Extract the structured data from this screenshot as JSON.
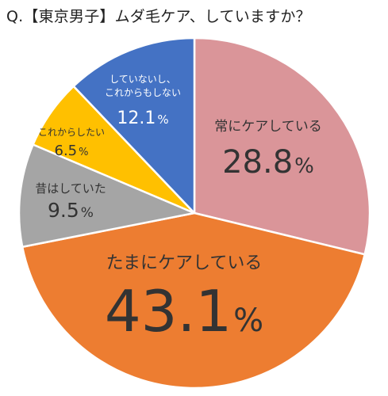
{
  "title": "Q.【東京男子】ムダ毛ケア、していますか？",
  "chart_data": {
    "type": "pie",
    "title": "Q.【東京男子】ムダ毛ケア、していますか？",
    "start_angle_deg": 0,
    "direction": "clockwise",
    "slices": [
      {
        "label_lines": [
          "常にケアしている"
        ],
        "value": 28.8,
        "value_text": "28.8",
        "unit": "%",
        "color": "#DA9599"
      },
      {
        "label_lines": [
          "たまにケアしている"
        ],
        "value": 43.1,
        "value_text": "43.1",
        "unit": "%",
        "color": "#ED7D31"
      },
      {
        "label_lines": [
          "昔はしていた"
        ],
        "value": 9.5,
        "value_text": "9.5",
        "unit": "%",
        "color": "#A5A5A5"
      },
      {
        "label_lines": [
          "これからしたい"
        ],
        "value": 6.5,
        "value_text": "6.5",
        "unit": "%",
        "color": "#FFC000"
      },
      {
        "label_lines": [
          "していないし、",
          "これからもしない"
        ],
        "value": 12.1,
        "value_text": "12.1",
        "unit": "%",
        "color": "#4472C4"
      }
    ]
  }
}
